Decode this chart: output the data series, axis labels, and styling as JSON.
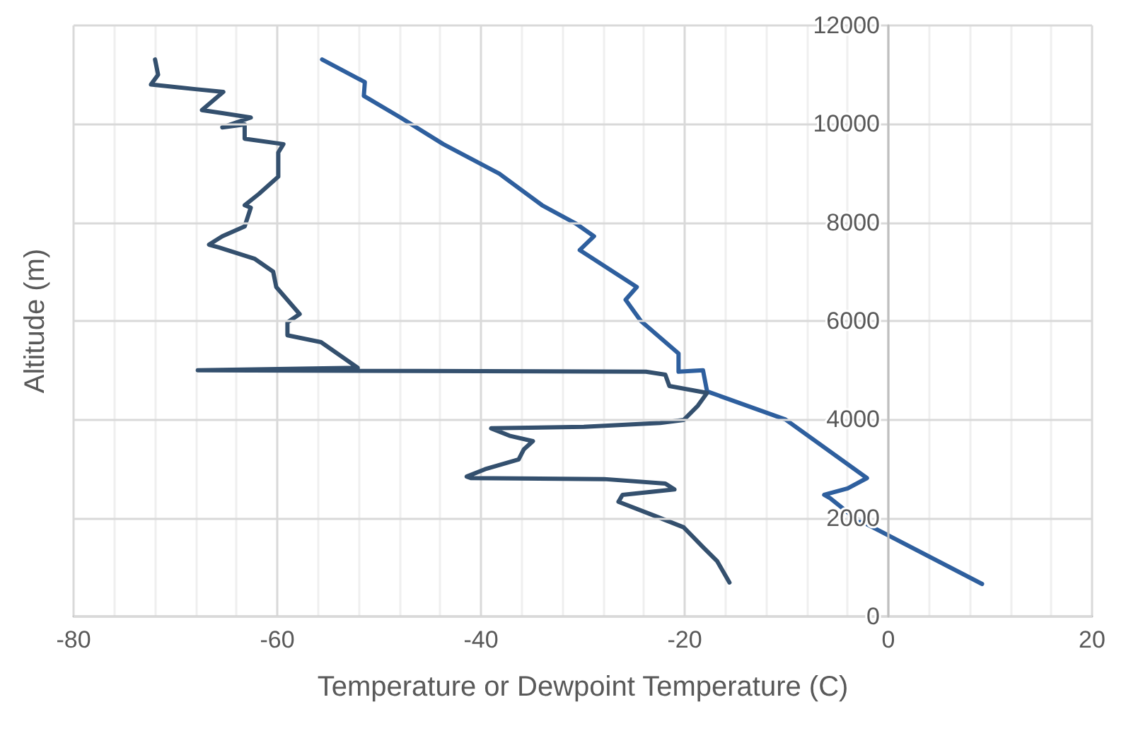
{
  "chart_data": {
    "type": "line",
    "xlabel": "Temperature or Dewpoint Temperature (C)",
    "ylabel": "Altitude (m)",
    "xlim": [
      -80,
      20
    ],
    "xticks": [
      -80,
      -60,
      -40,
      -20,
      0,
      20
    ],
    "ylim": [
      0,
      12000
    ],
    "yticks": [
      0,
      2000,
      4000,
      6000,
      8000,
      10000,
      12000
    ],
    "grid": true,
    "marker": "none",
    "line_style": "solid",
    "series": [
      {
        "color": "#2e5f9e",
        "x": [
          9.2,
          -3.3,
          -5.7,
          -6.3,
          -4,
          -2.1,
          -10.1,
          -17.8,
          -18.2,
          -20.6,
          -20.6,
          -24.3,
          -25.8,
          -24.7,
          -30.3,
          -28.9,
          -30.7,
          -34,
          -38.2,
          -43.7,
          -47.9,
          -51.5,
          -51.4,
          -55.6
        ],
        "values": [
          660,
          2000,
          2400,
          2470,
          2600,
          2810,
          4000,
          4570,
          5000,
          4970,
          5340,
          6000,
          6430,
          6690,
          7440,
          7720,
          7980,
          8350,
          8990,
          9590,
          10130,
          10570,
          10850,
          11310
        ]
      },
      {
        "color": "#34506e",
        "x": [
          -15.6,
          -16.8,
          -18.2,
          -20.1,
          -22.9,
          -26.5,
          -26.1,
          -21,
          -21.9,
          -27.9,
          -41,
          -41.4,
          -39.6,
          -36.3,
          -35.8,
          -34.9,
          -37.2,
          -39,
          -29.9,
          -22.4,
          -20.1,
          -18.7,
          -17.8,
          -21.5,
          -21.9,
          -23.8,
          -67.8,
          -52.1,
          -55.7,
          -59,
          -59,
          -57.8,
          -60.1,
          -60.4,
          -62.2,
          -65.7,
          -66.7,
          -65.4,
          -63.2,
          -62.6,
          -63.2,
          -61.8,
          -59.9,
          -59.9,
          -59.4,
          -63.2,
          -63.2,
          -65.4,
          -62.6,
          -65.4,
          -67.4,
          -65.3,
          -68.2,
          -72.4,
          -71.7,
          -72
        ],
        "values": [
          690,
          1120,
          1410,
          1810,
          2040,
          2330,
          2470,
          2580,
          2700,
          2790,
          2810,
          2840,
          2990,
          3190,
          3390,
          3560,
          3670,
          3820,
          3850,
          3930,
          3990,
          4280,
          4540,
          4680,
          4910,
          4970,
          5000,
          5050,
          5570,
          5710,
          5970,
          6140,
          6690,
          7000,
          7260,
          7490,
          7550,
          7720,
          7920,
          8300,
          8350,
          8580,
          8930,
          9420,
          9590,
          9700,
          9990,
          9930,
          10130,
          10220,
          10280,
          10650,
          10710,
          10800,
          11000,
          11310
        ]
      }
    ]
  }
}
